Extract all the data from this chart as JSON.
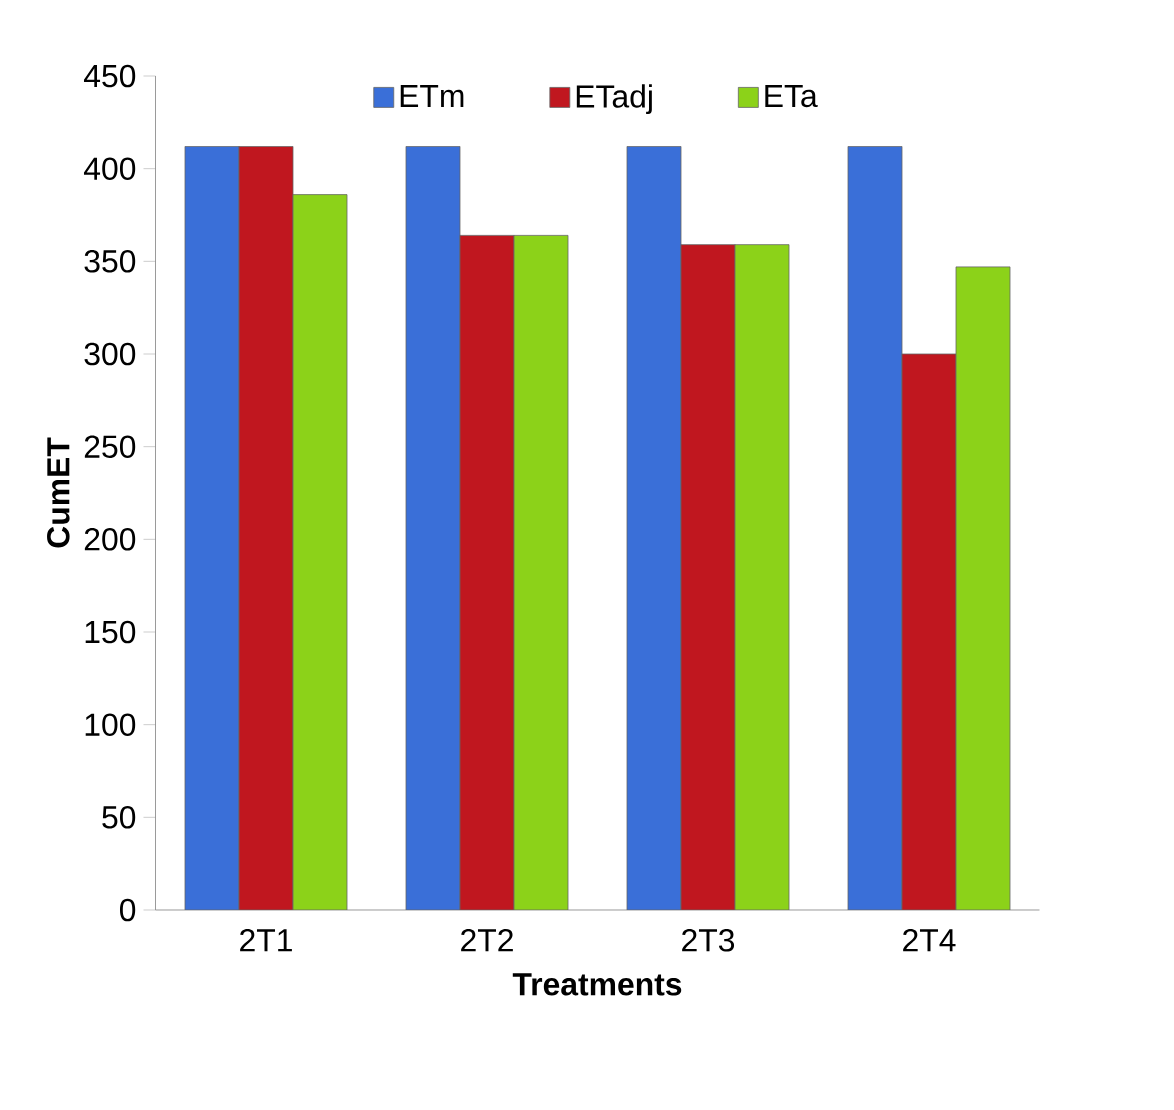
{
  "chart_data": {
    "type": "bar",
    "xlabel": "Treatments",
    "ylabel": "CumET",
    "categories": [
      "2T1",
      "2T2",
      "2T3",
      "2T4"
    ],
    "series": [
      {
        "name": "ETm",
        "color": "#3a6fd8",
        "values": [
          412,
          412,
          412,
          412
        ]
      },
      {
        "name": "ETadj",
        "color": "#c0171f",
        "values": [
          412,
          364,
          359,
          300
        ]
      },
      {
        "name": "ETa",
        "color": "#8cd219",
        "values": [
          386,
          364,
          359,
          347
        ]
      }
    ],
    "ylim": [
      0,
      450
    ],
    "yticks": [
      0,
      50,
      100,
      150,
      200,
      250,
      300,
      350,
      400,
      450
    ],
    "legend": "top",
    "grid": false
  }
}
